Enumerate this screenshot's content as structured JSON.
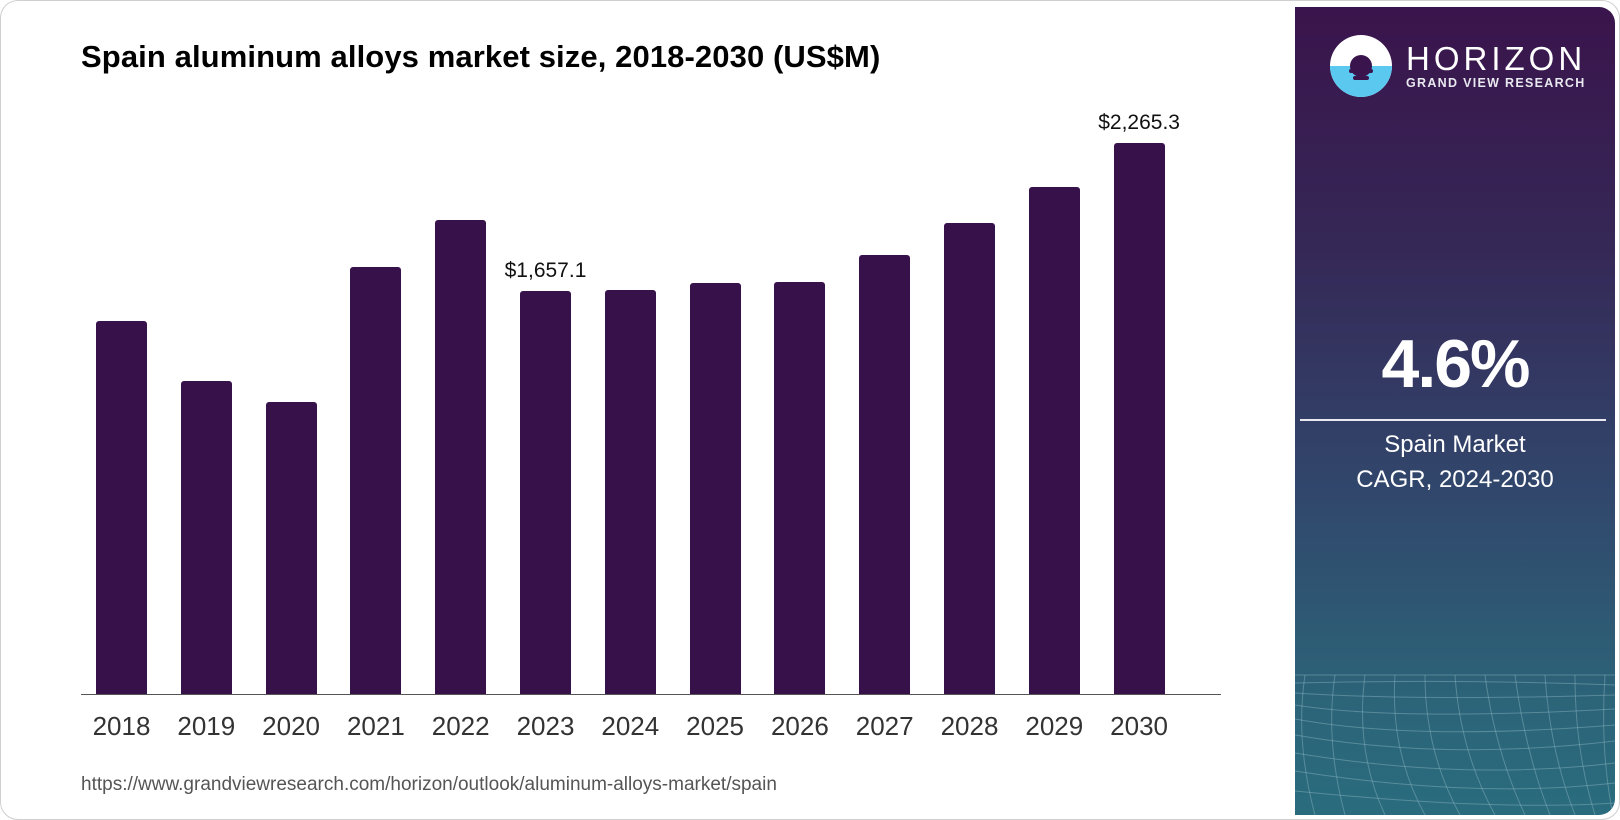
{
  "title": "Spain aluminum alloys market size, 2018-2030 (US$M)",
  "source_url": "https://www.grandviewresearch.com/horizon/outlook/aluminum-alloys-market/spain",
  "colors": {
    "bar": "#37114a",
    "panel_top": "#3a144c",
    "panel_bottom": "#2a6c7e",
    "logo_water": "#5bc8f0"
  },
  "brand": {
    "name": "HORIZON",
    "subtitle": "GRAND VIEW RESEARCH"
  },
  "side_panel": {
    "cagr_value": "4.6%",
    "cagr_line1": "Spain Market",
    "cagr_line2": "CAGR, 2024-2030"
  },
  "chart_data": {
    "type": "bar",
    "title": "Spain aluminum alloys market size, 2018-2030 (US$M)",
    "xlabel": "",
    "ylabel": "US$M",
    "categories": [
      "2018",
      "2019",
      "2020",
      "2021",
      "2022",
      "2023",
      "2024",
      "2025",
      "2026",
      "2027",
      "2028",
      "2029",
      "2030"
    ],
    "values": [
      1534,
      1287,
      1201,
      1756,
      1949,
      1657.1,
      1661,
      1690,
      1694,
      1805,
      1937,
      2085,
      2265.3
    ],
    "annotations": [
      {
        "category": "2023",
        "label": "$1,657.1"
      },
      {
        "category": "2030",
        "label": "$2,265.3"
      }
    ],
    "ylim": [
      0,
      2265.3
    ],
    "grid": false,
    "legend": null
  }
}
